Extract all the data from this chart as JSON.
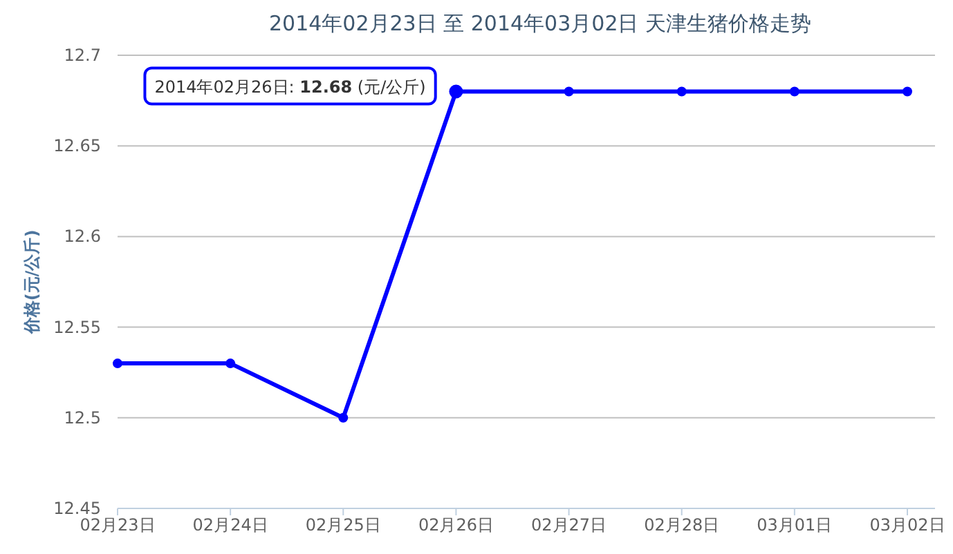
{
  "chart_data": {
    "type": "line",
    "title": "2014年02月23日 至 2014年03月02日 天津生猪价格走势",
    "ylabel": "价格(元/公斤)",
    "categories": [
      "02月23日",
      "02月24日",
      "02月25日",
      "02月26日",
      "02月27日",
      "02月28日",
      "03月01日",
      "03月02日"
    ],
    "series": [
      {
        "color": "#0000ff",
        "values": [
          12.53,
          12.53,
          12.5,
          12.68,
          12.68,
          12.68,
          12.68,
          12.68
        ]
      }
    ],
    "ylim": [
      12.45,
      12.7
    ],
    "yticks": [
      12.45,
      12.5,
      12.55,
      12.6,
      12.65,
      12.7
    ],
    "grid": "y",
    "marker": "circle",
    "annotations": [
      {
        "text": "2014年02月26日: **12.68** (元/公斤)",
        "x": "02月26日",
        "y": 12.68
      }
    ]
  }
}
